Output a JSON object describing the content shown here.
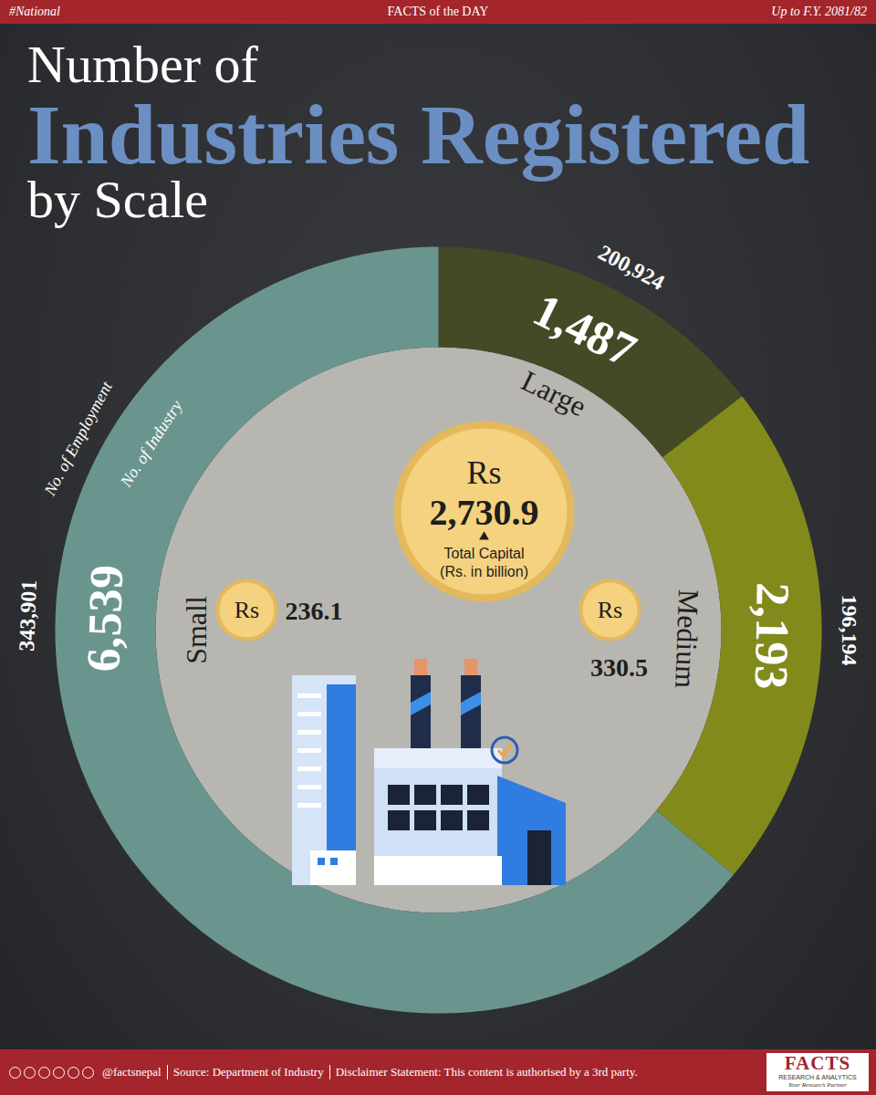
{
  "header": {
    "left": "#National",
    "center": "FACTS of the DAY",
    "right": "Up to F.Y. 2081/82"
  },
  "title": {
    "lines": [
      "Number of",
      "Industries Registered",
      "by Scale"
    ]
  },
  "chart_data": {
    "type": "donut",
    "categories": [
      "Large",
      "Medium",
      "Small"
    ],
    "values": [
      1487,
      2193,
      6539
    ],
    "value_labels": [
      "1,487",
      "2,193",
      "6,539"
    ],
    "colors": [
      "#434a25",
      "#838a1c",
      "#6a958e"
    ],
    "data_labels": true,
    "value_caption": "No. of Industry",
    "employment": [
      200924,
      196194,
      343901
    ],
    "employment_labels": [
      "200,924",
      "196,194",
      "343,901"
    ],
    "employment_caption": "No. of Employment",
    "capital": [
      2730.9,
      330.5,
      236.1
    ],
    "capital_labels": [
      "2,730.9",
      "330.5",
      "236.1"
    ],
    "capital_currency": "Rs",
    "capital_caption": "Total Capital",
    "capital_unit": "(Rs. in billion)"
  },
  "footer": {
    "handle": "@factsnepal",
    "source": "Source: Department of Industry",
    "disclaimer": "Disclaimer Statement: This content is authorised by a 3rd party.",
    "logo": {
      "name": "FACTS",
      "line1": "RESEARCH & ANALYTICS",
      "line2": "Your Research Partner"
    }
  }
}
